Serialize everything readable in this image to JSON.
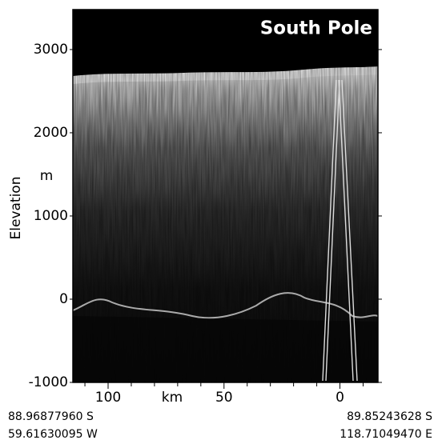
{
  "chart_data": {
    "type": "radargram",
    "title": "South Pole",
    "ylabel": "Elevation",
    "yunit": "m",
    "xlabel": "km",
    "xlim": [
      115.2,
      -16.4
    ],
    "xticks": [
      100,
      50,
      0
    ],
    "xminorticks": [
      110,
      90,
      80,
      70,
      60,
      40,
      30,
      20,
      10,
      -10
    ],
    "ylim": [
      -1000,
      3480
    ],
    "yticks": [
      -1000,
      0,
      1000,
      2000,
      3000
    ],
    "start_coords": [
      "88.96877960 S",
      "59.61630095 W"
    ],
    "end_coords": [
      "89.85243628 S",
      "118.71049470 E"
    ]
  }
}
